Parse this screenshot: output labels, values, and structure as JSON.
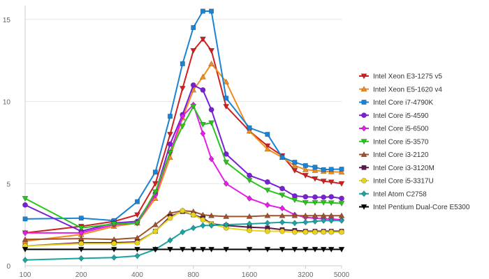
{
  "chart_data": {
    "type": "line",
    "title": "",
    "xlabel": "",
    "ylabel": "",
    "x_scale": "log",
    "x": [
      100,
      200,
      300,
      400,
      500,
      600,
      700,
      800,
      900,
      1000,
      1200,
      1600,
      2000,
      2400,
      2800,
      3200,
      3600,
      4000,
      4400,
      5000
    ],
    "xticks": [
      100,
      200,
      400,
      800,
      1600,
      3200,
      5000
    ],
    "xtick_labels": [
      "100",
      "200",
      "400",
      "800",
      "1600",
      "3200",
      "5000"
    ],
    "ylim": [
      0,
      15.5
    ],
    "yticks": [
      0,
      5,
      10,
      15
    ],
    "ytick_labels": [
      "0",
      "5",
      "10",
      "15"
    ],
    "grid": {
      "horizontal": true,
      "vertical": false
    },
    "legend_position": "right",
    "series": [
      {
        "name": "Intel Xeon E3-1275 v5",
        "color": "#d11f1f",
        "marker": "triangle-down",
        "values": [
          2.0,
          2.4,
          2.7,
          3.1,
          5.0,
          8.0,
          10.8,
          13.1,
          13.8,
          13.1,
          9.7,
          8.2,
          7.3,
          6.7,
          5.8,
          5.5,
          5.3,
          5.15,
          5.1,
          5.0
        ]
      },
      {
        "name": "Intel Xeon E5-1620 v4",
        "color": "#f28c1e",
        "marker": "triangle-up",
        "values": [
          1.5,
          1.9,
          2.4,
          2.6,
          4.1,
          6.6,
          9.0,
          10.7,
          11.5,
          12.3,
          11.2,
          8.2,
          7.1,
          6.6,
          6.1,
          5.85,
          5.8,
          5.75,
          5.72,
          5.7
        ]
      },
      {
        "name": "Intel Core i7-4790K",
        "color": "#1b83d4",
        "marker": "square",
        "values": [
          2.85,
          2.9,
          2.75,
          3.9,
          5.7,
          9.1,
          12.3,
          14.5,
          15.5,
          15.5,
          10.2,
          8.4,
          8.0,
          6.6,
          6.3,
          6.1,
          6.0,
          5.85,
          5.87,
          5.88
        ]
      },
      {
        "name": "Intel Core i5-4590",
        "color": "#7b1fd6",
        "marker": "circle",
        "values": [
          3.7,
          2.1,
          2.6,
          2.7,
          4.4,
          7.4,
          9.2,
          11.0,
          10.7,
          9.5,
          6.8,
          5.5,
          5.1,
          4.7,
          4.25,
          4.2,
          4.18,
          4.17,
          4.2,
          4.1
        ]
      },
      {
        "name": "Intel Core i5-6500",
        "color": "#e61ee6",
        "marker": "diamond",
        "values": [
          2.0,
          2.0,
          2.5,
          2.6,
          4.3,
          6.9,
          9.1,
          9.8,
          8.05,
          6.5,
          5.0,
          4.1,
          3.7,
          3.5,
          3.1,
          2.95,
          2.9,
          2.85,
          2.85,
          2.8
        ]
      },
      {
        "name": "Intel Core i5-3570",
        "color": "#2bc41d",
        "marker": "triangle-down",
        "values": [
          4.1,
          2.3,
          2.55,
          2.6,
          4.5,
          6.9,
          8.5,
          9.7,
          8.6,
          8.7,
          6.3,
          5.2,
          4.6,
          4.3,
          4.0,
          3.85,
          3.85,
          3.85,
          3.83,
          3.8
        ]
      },
      {
        "name": "Intel Core i3-2120",
        "color": "#a0522d",
        "marker": "triangle-up",
        "values": [
          1.6,
          1.65,
          1.6,
          1.7,
          2.5,
          3.2,
          3.35,
          3.3,
          3.1,
          3.05,
          3.0,
          3.0,
          3.05,
          3.05,
          3.05,
          3.05,
          3.05,
          3.05,
          3.05,
          3.05
        ]
      },
      {
        "name": "Intel Core i3-3120M",
        "color": "#5c1a4a",
        "marker": "square",
        "values": [
          1.2,
          1.4,
          1.4,
          1.45,
          2.1,
          3.0,
          3.3,
          3.1,
          2.9,
          2.55,
          2.45,
          2.35,
          2.3,
          2.2,
          2.15,
          2.1,
          2.1,
          2.1,
          2.1,
          2.1
        ]
      },
      {
        "name": "Intel Core i5-3317U",
        "color": "#e8d51a",
        "marker": "circle",
        "values": [
          1.2,
          1.35,
          1.35,
          1.4,
          2.1,
          2.9,
          3.35,
          3.1,
          2.8,
          2.55,
          2.3,
          2.15,
          2.1,
          2.1,
          2.05,
          2.05,
          2.05,
          2.05,
          2.05,
          2.05
        ]
      },
      {
        "name": "Intel Atom C2758",
        "color": "#1aa3a3",
        "marker": "diamond",
        "values": [
          0.35,
          0.45,
          0.5,
          0.6,
          1.0,
          1.55,
          2.05,
          2.3,
          2.45,
          2.45,
          2.5,
          2.55,
          2.6,
          2.65,
          2.6,
          2.65,
          2.7,
          2.75,
          2.75,
          2.75
        ]
      },
      {
        "name": "Intel Pentium Dual-Core E5300",
        "color": "#000000",
        "marker": "triangle-down",
        "values": [
          1.0,
          1.0,
          1.0,
          1.0,
          1.0,
          1.0,
          1.0,
          1.0,
          1.0,
          1.0,
          1.0,
          1.0,
          1.0,
          1.0,
          1.0,
          1.0,
          1.0,
          1.0,
          1.0,
          1.0
        ]
      }
    ]
  }
}
